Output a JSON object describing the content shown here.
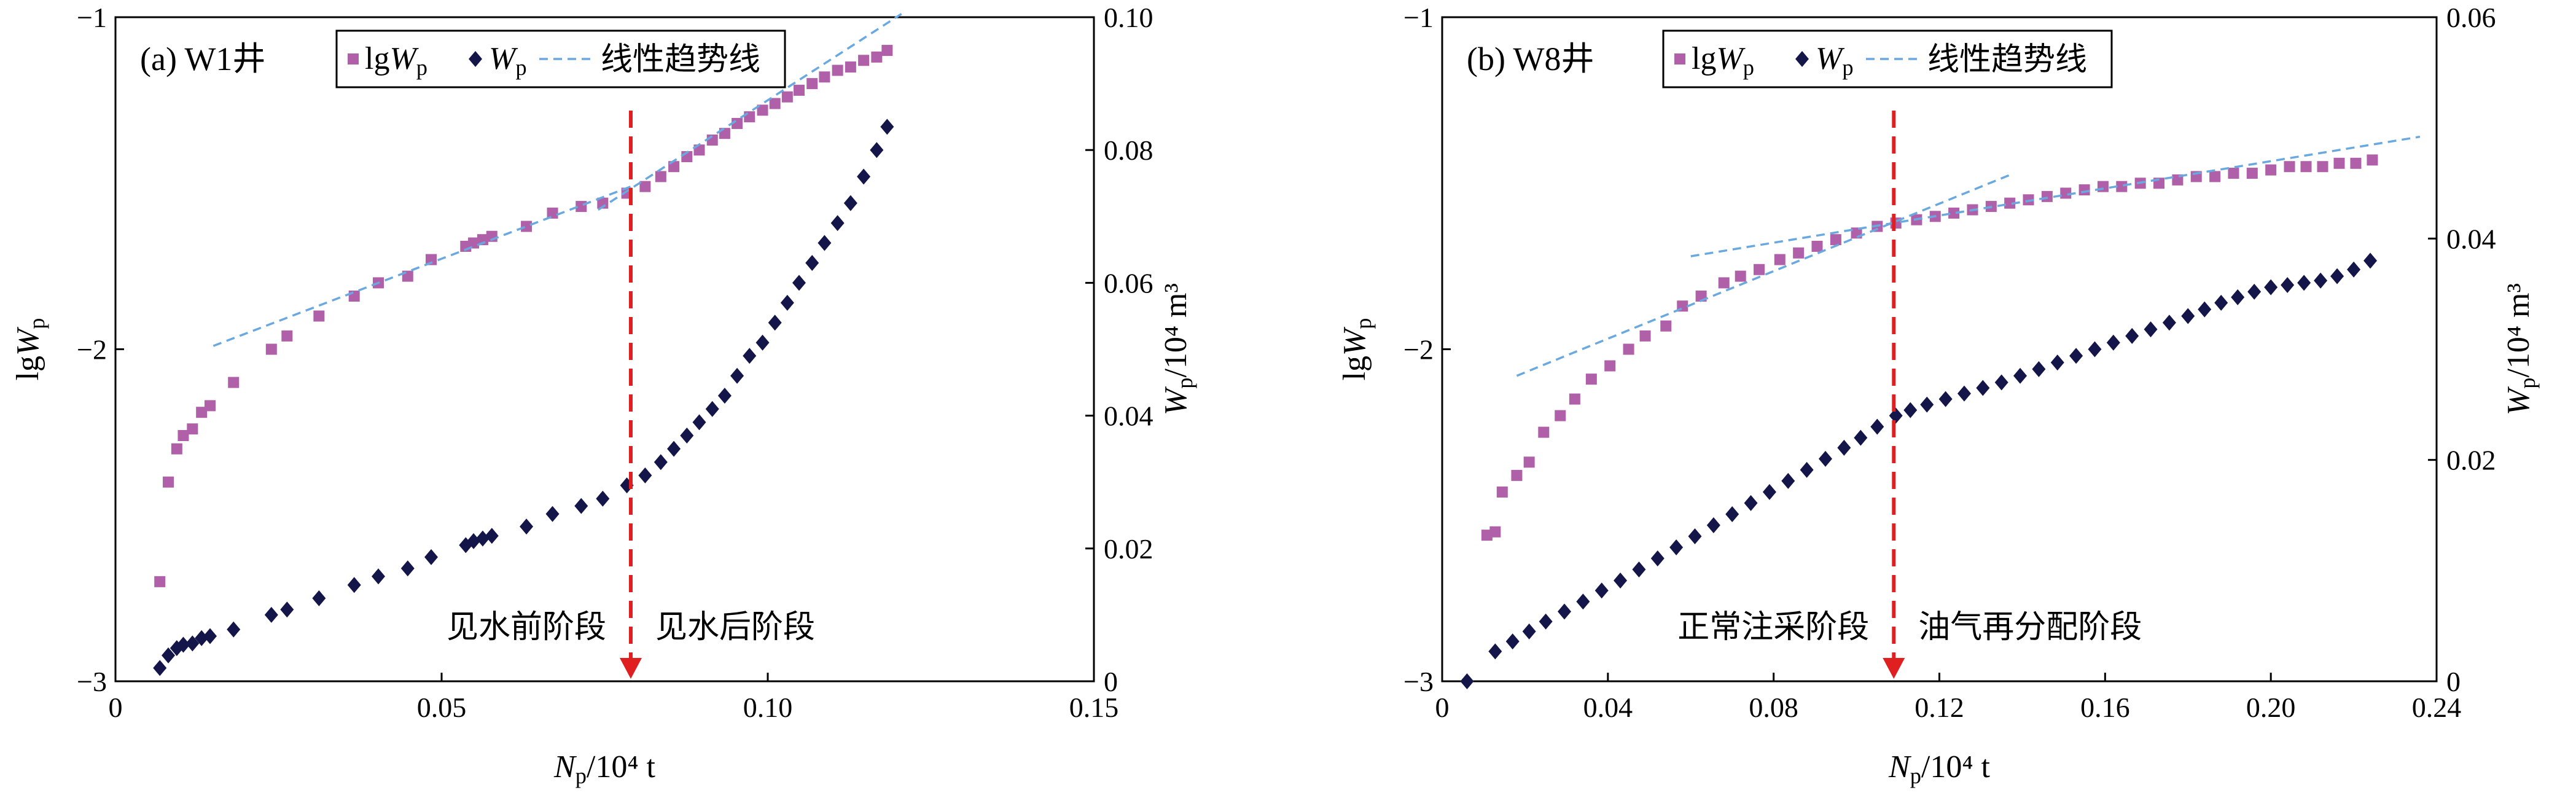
{
  "chart_data": [
    {
      "type": "scatter",
      "panel_label": "(a) W1井",
      "xlabel": "Np/10⁴ t",
      "ylabel_left": "lgWp",
      "ylabel_right": "Wp/10⁴ m³",
      "xlim": [
        0,
        0.15
      ],
      "ylim_left": [
        -3,
        -1
      ],
      "ylim_right": [
        0,
        0.1
      ],
      "x_ticks": [
        "0",
        "0.05",
        "0.10",
        "0.15"
      ],
      "y_left_ticks": [
        "−3",
        "−2",
        "−1"
      ],
      "y_right_ticks": [
        "0",
        "0.02",
        "0.04",
        "0.06",
        "0.08",
        "0.10"
      ],
      "legend": [
        "lgWp",
        "Wp",
        "线性趋势线"
      ],
      "colors": {
        "lgWp": "#b060a8",
        "Wp": "#14164a",
        "trend": "#6aa8e0",
        "divider": "#e02020"
      },
      "divider_x": 0.079,
      "stage_labels": [
        "见水前阶段",
        "见水后阶段"
      ],
      "series": [
        {
          "name": "lgWp",
          "axis": "left",
          "marker": "square",
          "x": [
            0.0068,
            0.0081,
            0.0094,
            0.0104,
            0.0118,
            0.0132,
            0.0145,
            0.0181,
            0.0239,
            0.0263,
            0.0312,
            0.0366,
            0.0403,
            0.0448,
            0.0484,
            0.0537,
            0.0549,
            0.0563,
            0.0577,
            0.063,
            0.067,
            0.0714,
            0.0747,
            0.0784,
            0.0812,
            0.0836,
            0.0856,
            0.0876,
            0.0895,
            0.0915,
            0.0934,
            0.0953,
            0.0972,
            0.0992,
            0.1011,
            0.103,
            0.1048,
            0.1068,
            0.1087,
            0.1107,
            0.1127,
            0.1147,
            0.1167,
            0.1183
          ],
          "y": [
            -2.7,
            -2.4,
            -2.3,
            -2.26,
            -2.24,
            -2.19,
            -2.17,
            -2.1,
            -2.0,
            -1.96,
            -1.9,
            -1.84,
            -1.8,
            -1.78,
            -1.73,
            -1.69,
            -1.68,
            -1.67,
            -1.66,
            -1.63,
            -1.59,
            -1.57,
            -1.56,
            -1.53,
            -1.51,
            -1.48,
            -1.45,
            -1.42,
            -1.4,
            -1.37,
            -1.35,
            -1.32,
            -1.3,
            -1.28,
            -1.26,
            -1.24,
            -1.22,
            -1.2,
            -1.18,
            -1.16,
            -1.15,
            -1.13,
            -1.12,
            -1.1
          ]
        },
        {
          "name": "Wp",
          "axis": "right",
          "marker": "diamond",
          "x": [
            0.0068,
            0.0081,
            0.0094,
            0.0104,
            0.0118,
            0.0132,
            0.0145,
            0.0181,
            0.0239,
            0.0263,
            0.0312,
            0.0366,
            0.0403,
            0.0448,
            0.0484,
            0.0537,
            0.0549,
            0.0563,
            0.0577,
            0.063,
            0.067,
            0.0714,
            0.0747,
            0.0784,
            0.0812,
            0.0836,
            0.0856,
            0.0876,
            0.0895,
            0.0915,
            0.0934,
            0.0953,
            0.0972,
            0.0992,
            0.1011,
            0.103,
            0.1048,
            0.1068,
            0.1087,
            0.1107,
            0.1127,
            0.1147,
            0.1167,
            0.1183
          ],
          "y": [
            0.002,
            0.0039,
            0.005,
            0.0055,
            0.0057,
            0.0065,
            0.0068,
            0.0078,
            0.01,
            0.0108,
            0.0125,
            0.0145,
            0.0158,
            0.017,
            0.0187,
            0.0205,
            0.0211,
            0.0215,
            0.0219,
            0.0233,
            0.0252,
            0.0264,
            0.0275,
            0.0295,
            0.031,
            0.033,
            0.035,
            0.037,
            0.039,
            0.041,
            0.043,
            0.046,
            0.049,
            0.051,
            0.054,
            0.057,
            0.06,
            0.063,
            0.066,
            0.069,
            0.072,
            0.076,
            0.08,
            0.0835
          ]
        },
        {
          "name": "线性趋势线",
          "axis": "left",
          "style": "dashed",
          "segments": [
            {
              "x": [
                0.015,
                0.079
              ],
              "y": [
                -1.99,
                -1.51
              ]
            },
            {
              "x": [
                0.074,
                0.1205
              ],
              "y": [
                -1.58,
                -0.99
              ]
            }
          ]
        }
      ]
    },
    {
      "type": "scatter",
      "panel_label": "(b) W8井",
      "xlabel": "Np/10⁴ t",
      "ylabel_left": "lgWp",
      "ylabel_right": "Wp/10⁴ m³",
      "xlim": [
        0,
        0.24
      ],
      "ylim_left": [
        -3,
        -1
      ],
      "ylim_right": [
        0,
        0.06
      ],
      "x_ticks": [
        "0",
        "0.04",
        "0.08",
        "0.12",
        "0.16",
        "0.20",
        "0.24"
      ],
      "y_left_ticks": [
        "−3",
        "−2",
        "−1"
      ],
      "y_right_ticks": [
        "0",
        "0.02",
        "0.04",
        "0.06"
      ],
      "legend": [
        "lgWp",
        "Wp",
        "线性趋势线"
      ],
      "colors": {
        "lgWp": "#b060a8",
        "Wp": "#14164a",
        "trend": "#6aa8e0",
        "divider": "#e02020"
      },
      "divider_x": 0.109,
      "stage_labels": [
        "正常注采阶段",
        "油气再分配阶段"
      ],
      "series": [
        {
          "name": "lgWp",
          "axis": "left",
          "marker": "square",
          "x": [
            0.0108,
            0.0128,
            0.0145,
            0.018,
            0.021,
            0.0245,
            0.0285,
            0.032,
            0.036,
            0.0405,
            0.045,
            0.049,
            0.054,
            0.058,
            0.0625,
            0.068,
            0.072,
            0.0765,
            0.0815,
            0.086,
            0.0905,
            0.095,
            0.1,
            0.105,
            0.1095,
            0.1145,
            0.119,
            0.1235,
            0.128,
            0.1325,
            0.137,
            0.1415,
            0.146,
            0.1505,
            0.155,
            0.1595,
            0.164,
            0.1685,
            0.173,
            0.1775,
            0.182,
            0.1865,
            0.191,
            0.1955,
            0.2,
            0.2045,
            0.2085,
            0.2125,
            0.2165,
            0.2205,
            0.2245
          ],
          "y": [
            -2.56,
            -2.55,
            -2.43,
            -2.38,
            -2.34,
            -2.25,
            -2.2,
            -2.15,
            -2.09,
            -2.05,
            -2.0,
            -1.96,
            -1.93,
            -1.87,
            -1.84,
            -1.8,
            -1.78,
            -1.76,
            -1.73,
            -1.71,
            -1.69,
            -1.67,
            -1.65,
            -1.63,
            -1.62,
            -1.61,
            -1.6,
            -1.59,
            -1.58,
            -1.57,
            -1.56,
            -1.55,
            -1.54,
            -1.53,
            -1.52,
            -1.51,
            -1.51,
            -1.5,
            -1.5,
            -1.49,
            -1.48,
            -1.48,
            -1.47,
            -1.47,
            -1.46,
            -1.45,
            -1.45,
            -1.45,
            -1.44,
            -1.44,
            -1.43
          ]
        },
        {
          "name": "Wp",
          "axis": "right",
          "marker": "diamond",
          "x": [
            0.006,
            0.0128,
            0.017,
            0.021,
            0.025,
            0.0295,
            0.034,
            0.0385,
            0.043,
            0.0475,
            0.052,
            0.0565,
            0.061,
            0.0655,
            0.07,
            0.0745,
            0.079,
            0.0835,
            0.088,
            0.0925,
            0.097,
            0.101,
            0.105,
            0.1095,
            0.113,
            0.117,
            0.1215,
            0.126,
            0.1305,
            0.135,
            0.1395,
            0.144,
            0.1485,
            0.153,
            0.1575,
            0.162,
            0.1665,
            0.171,
            0.1755,
            0.18,
            0.184,
            0.188,
            0.192,
            0.196,
            0.2,
            0.204,
            0.208,
            0.212,
            0.216,
            0.22,
            0.224
          ],
          "y": [
            0.0,
            0.0027,
            0.0036,
            0.0045,
            0.0054,
            0.0063,
            0.0072,
            0.0082,
            0.0091,
            0.0101,
            0.0111,
            0.0121,
            0.0131,
            0.0141,
            0.0151,
            0.0161,
            0.0171,
            0.0181,
            0.0191,
            0.0201,
            0.0211,
            0.022,
            0.023,
            0.024,
            0.0245,
            0.025,
            0.0255,
            0.026,
            0.0265,
            0.027,
            0.0276,
            0.0282,
            0.0288,
            0.0294,
            0.03,
            0.0306,
            0.0312,
            0.0318,
            0.0324,
            0.033,
            0.0336,
            0.0342,
            0.0347,
            0.0352,
            0.0356,
            0.0358,
            0.036,
            0.0362,
            0.0366,
            0.0372,
            0.038
          ]
        },
        {
          "name": "线性趋势线",
          "axis": "left",
          "style": "dashed",
          "segments": [
            {
              "x": [
                0.018,
                0.138
              ],
              "y": [
                -2.08,
                -1.47
              ]
            },
            {
              "x": [
                0.06,
                0.236
              ],
              "y": [
                -1.72,
                -1.36
              ]
            }
          ]
        }
      ]
    }
  ]
}
